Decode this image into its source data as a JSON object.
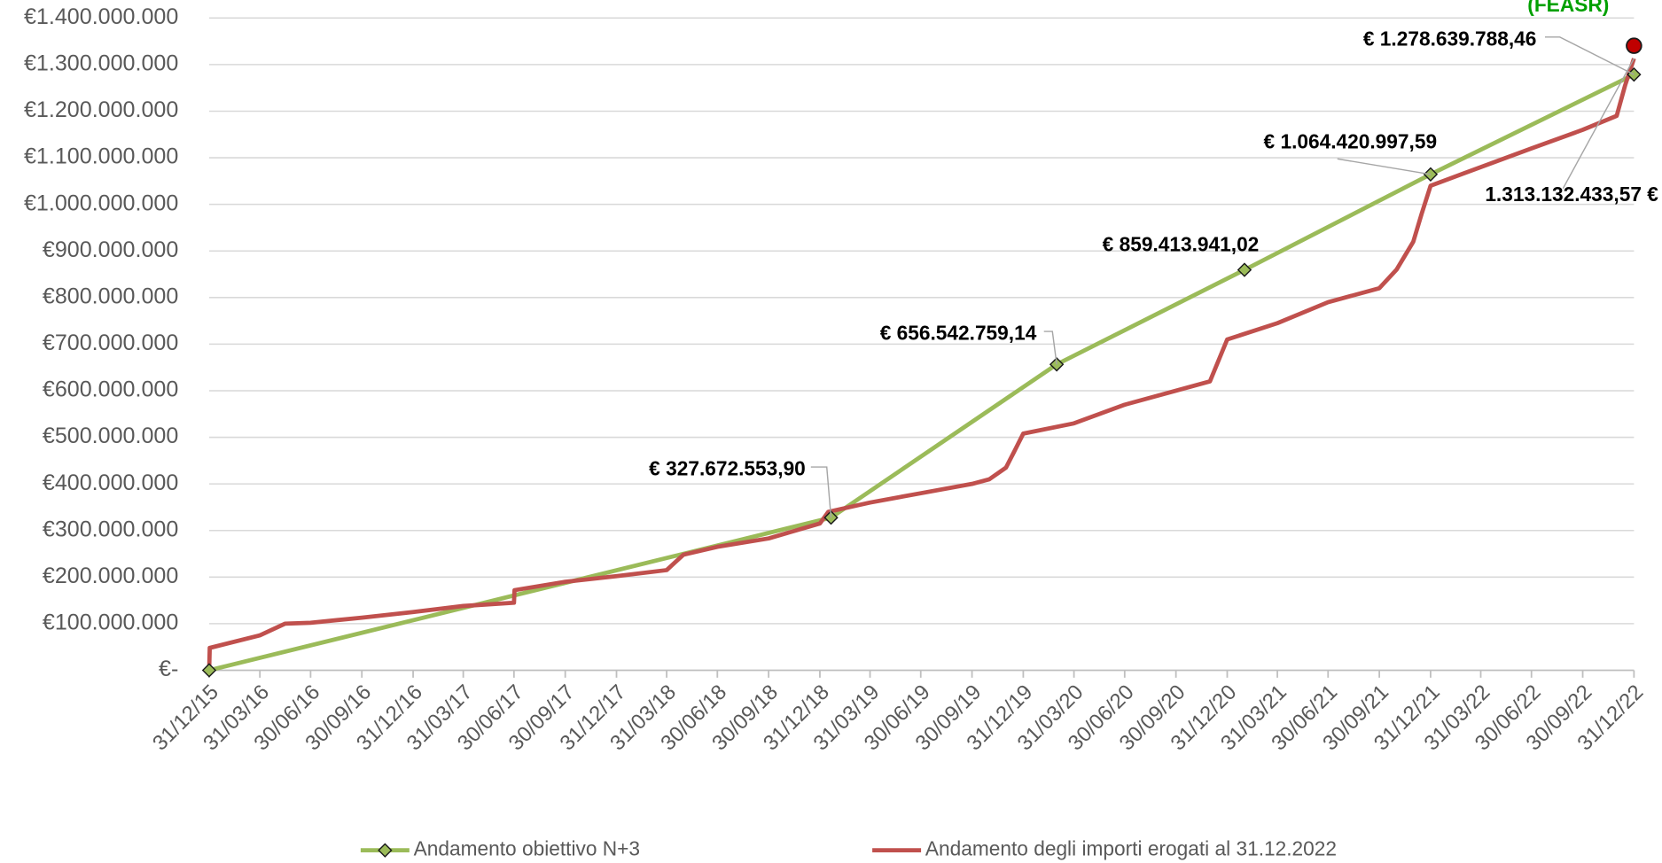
{
  "chart_data": {
    "type": "line",
    "annotation": "(FEASR)",
    "xlim": [
      "31/12/15",
      "31/12/22"
    ],
    "xticks": [
      "31/12/15",
      "31/03/16",
      "30/06/16",
      "30/09/16",
      "31/12/16",
      "31/03/17",
      "30/06/17",
      "30/09/17",
      "31/12/17",
      "31/03/18",
      "30/06/18",
      "30/09/18",
      "31/12/18",
      "31/03/19",
      "30/06/19",
      "30/09/19",
      "31/12/19",
      "31/03/20",
      "30/06/20",
      "30/09/20",
      "31/12/20",
      "31/03/21",
      "30/06/21",
      "30/09/21",
      "31/12/21",
      "31/03/22",
      "30/06/22",
      "30/09/22",
      "31/12/22"
    ],
    "ylim": [
      0,
      1400000000
    ],
    "yticks": [
      {
        "value": 0,
        "label": "€-"
      },
      {
        "value": 100000000,
        "label": "€100.000.000"
      },
      {
        "value": 200000000,
        "label": "€200.000.000"
      },
      {
        "value": 300000000,
        "label": "€300.000.000"
      },
      {
        "value": 400000000,
        "label": "€400.000.000"
      },
      {
        "value": 500000000,
        "label": "€500.000.000"
      },
      {
        "value": 600000000,
        "label": "€600.000.000"
      },
      {
        "value": 700000000,
        "label": "€700.000.000"
      },
      {
        "value": 800000000,
        "label": "€800.000.000"
      },
      {
        "value": 900000000,
        "label": "€900.000.000"
      },
      {
        "value": 1000000000,
        "label": "€1.000.000.000"
      },
      {
        "value": 1100000000,
        "label": "€1.100.000.000"
      },
      {
        "value": 1200000000,
        "label": "€1.200.000.000"
      },
      {
        "value": 1300000000,
        "label": "€1.300.000.000"
      },
      {
        "value": 1400000000,
        "label": "€1.400.000.000"
      }
    ],
    "grid": true,
    "legend": "bottom",
    "series": [
      {
        "name": "Andamento obiettivo N+3",
        "color": "#9bbb59",
        "marker": "diamond",
        "x": [
          "31/12/15",
          "20/01/19",
          "29/02/20",
          "31/01/21",
          "31/12/21",
          "31/12/22"
        ],
        "values": [
          0,
          327672553.9,
          656542759.14,
          859413941.02,
          1064420997.59,
          1278639788.46
        ],
        "value_labels": [
          null,
          "€ 327.672.553,90",
          "€ 656.542.759,14",
          "€ 859.413.941,02",
          "€ 1.064.420.997,59",
          "€ 1.278.639.788,46"
        ]
      },
      {
        "name": "Andamento degli importi erogati al 31.12.2022",
        "color": "#c0504d",
        "x": [
          "31/12/15",
          "01/01/16",
          "31/03/16",
          "15/05/16",
          "30/06/16",
          "30/09/16",
          "31/12/16",
          "31/03/17",
          "30/06/17",
          "01/07/17",
          "30/09/17",
          "31/12/17",
          "31/03/18",
          "30/04/18",
          "30/06/18",
          "30/09/18",
          "31/12/18",
          "15/01/19",
          "31/03/19",
          "30/06/19",
          "30/09/19",
          "31/10/19",
          "30/11/19",
          "15/12/19",
          "31/12/19",
          "31/03/20",
          "30/06/20",
          "30/09/20",
          "30/11/20",
          "31/12/20",
          "31/03/21",
          "30/06/21",
          "30/09/21",
          "31/10/21",
          "30/11/21",
          "15/12/21",
          "31/12/21",
          "31/03/22",
          "30/06/22",
          "30/09/22",
          "30/11/22",
          "15/12/22",
          "31/12/22"
        ],
        "values": [
          0,
          48000000,
          75000000,
          100000000,
          102000000,
          113000000,
          125000000,
          138000000,
          145000000,
          172000000,
          190000000,
          202000000,
          215000000,
          248000000,
          265000000,
          283000000,
          315000000,
          340000000,
          360000000,
          380000000,
          400000000,
          410000000,
          435000000,
          470000000,
          508000000,
          530000000,
          570000000,
          600000000,
          620000000,
          710000000,
          745000000,
          790000000,
          820000000,
          860000000,
          920000000,
          980000000,
          1040000000,
          1080000000,
          1120000000,
          1160000000,
          1190000000,
          1255000000,
          1313132433.57
        ],
        "value_labels": [
          null,
          null,
          null,
          null,
          null,
          null,
          null,
          null,
          null,
          null,
          null,
          null,
          null,
          null,
          null,
          null,
          null,
          null,
          null,
          null,
          null,
          null,
          null,
          null,
          null,
          null,
          null,
          null,
          null,
          null,
          null,
          null,
          null,
          null,
          null,
          null,
          null,
          null,
          null,
          null,
          null,
          null,
          "1.313.132.433,57 €"
        ]
      }
    ]
  }
}
